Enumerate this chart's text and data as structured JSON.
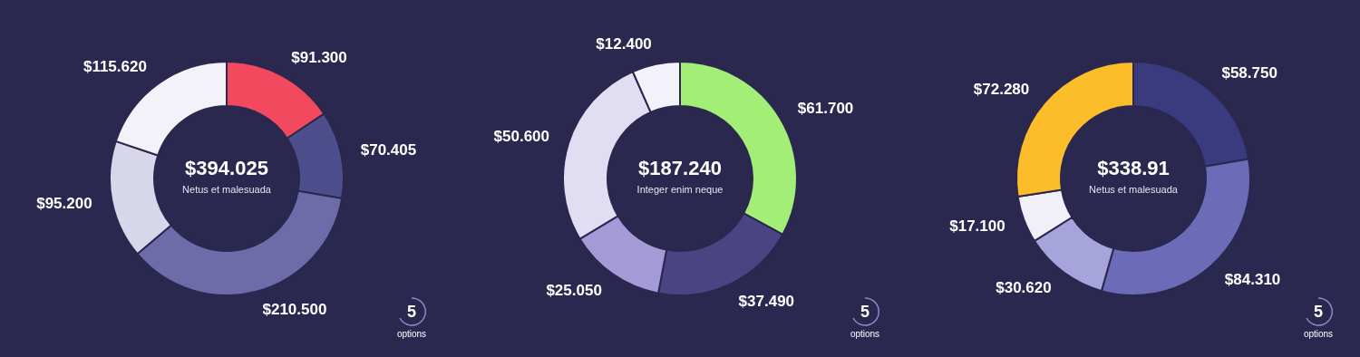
{
  "chart_data": [
    {
      "type": "donut",
      "title": "$394.025",
      "subtitle": "Netus et malesuada",
      "categories": [
        null,
        null,
        null,
        null,
        null
      ],
      "values": [
        91.3,
        70.405,
        210.5,
        95.2,
        115.62
      ],
      "colors": [
        "#f2495e",
        "#4f4e8c",
        "#6e6ca8",
        "#d7d6ea",
        "#f3f2f8"
      ],
      "value_labels": [
        "$91.300",
        "$70.405",
        "$210.500",
        "$95.200",
        "$115.620"
      ],
      "legend": false,
      "annotations": [
        "5",
        "options"
      ]
    },
    {
      "type": "donut",
      "title": "$187.240",
      "subtitle": "Integer enim neque",
      "categories": [
        null,
        null,
        null,
        null,
        null
      ],
      "values": [
        61.7,
        37.49,
        25.05,
        50.6,
        12.4
      ],
      "colors": [
        "#a3ee77",
        "#4a4483",
        "#a49ad6",
        "#e1def4",
        "#f3f2fa"
      ],
      "value_labels": [
        "$61.700",
        "$37.490",
        "$25.050",
        "$50.600",
        "$12.400"
      ],
      "legend": false,
      "annotations": [
        "5",
        "options"
      ]
    },
    {
      "type": "donut",
      "title": "$338.91",
      "subtitle": "Netus et malesuada",
      "categories": [
        null,
        null,
        null,
        null,
        null
      ],
      "values": [
        58.75,
        84.31,
        30.62,
        17.1,
        72.28
      ],
      "colors": [
        "#3a3a7e",
        "#6c6bb8",
        "#a7a4dc",
        "#f1f0f8",
        "#fbbd2a"
      ],
      "value_labels": [
        "$58.750",
        "$84.310",
        "$30.620",
        "$17.100",
        "$72.280"
      ],
      "legend": false,
      "annotations": [
        "5",
        "options"
      ]
    }
  ]
}
